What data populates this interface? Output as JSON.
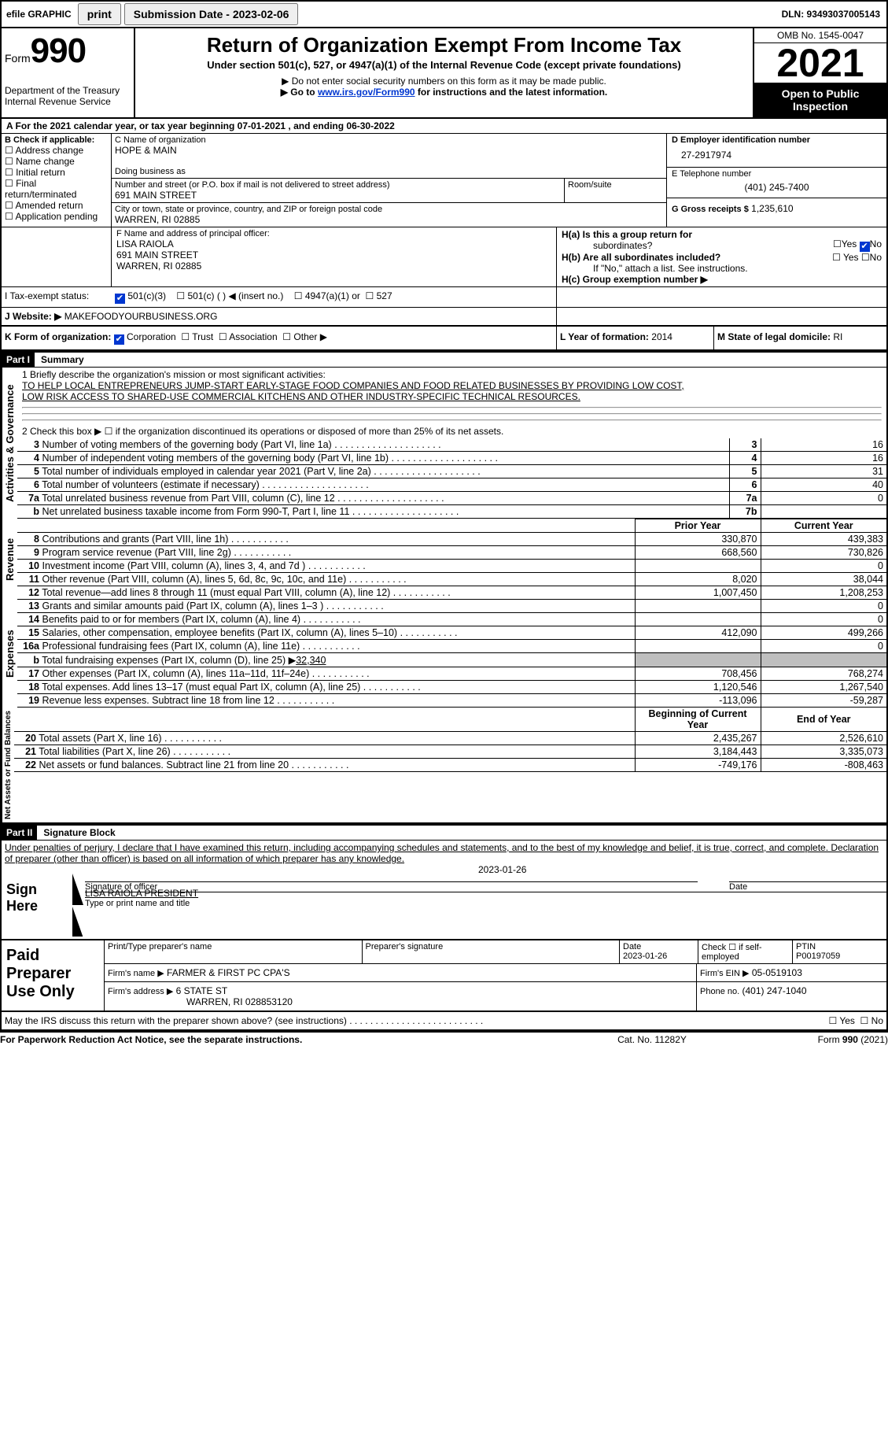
{
  "topbar": {
    "efile_label": "efile GRAPHIC",
    "print_label": "print",
    "sub_date_label": "Submission Date - 2023-02-06",
    "dln_label": "DLN: 93493037005143"
  },
  "header": {
    "form_word": "Form",
    "form_num": "990",
    "dept": "Department of the Treasury",
    "irs": "Internal Revenue Service",
    "title": "Return of Organization Exempt From Income Tax",
    "subtitle": "Under section 501(c), 527, or 4947(a)(1) of the Internal Revenue Code (except private foundations)",
    "note1": "▶ Do not enter social security numbers on this form as it may be made public.",
    "note2_pre": "▶ Go to ",
    "note2_link": "www.irs.gov/Form990",
    "note2_post": " for instructions and the latest information.",
    "omb": "OMB No. 1545-0047",
    "year": "2021",
    "public": "Open to Public Inspection"
  },
  "rowA": {
    "text_a": "A For the 2021 calendar year, or tax year beginning 07-01-2021",
    "text_b": ", and ending 06-30-2022"
  },
  "B": {
    "label": "B Check if applicable:",
    "c1": "Address change",
    "c2": "Name change",
    "c3": "Initial return",
    "c4": "Final return/terminated",
    "c5": "Amended return",
    "c6": "Application pending"
  },
  "C": {
    "name_label": "C Name of organization",
    "name": "HOPE & MAIN",
    "dba_label": "Doing business as",
    "street_label": "Number and street (or P.O. box if mail is not delivered to street address)",
    "room_label": "Room/suite",
    "street": "691 MAIN STREET",
    "city_label": "City or town, state or province, country, and ZIP or foreign postal code",
    "city": "WARREN, RI  02885"
  },
  "D": {
    "label": "D Employer identification number",
    "val": "27-2917974"
  },
  "E": {
    "label": "E Telephone number",
    "val": "(401) 245-7400"
  },
  "G": {
    "label": "G Gross receipts $",
    "val": "1,235,610"
  },
  "F": {
    "label": "F  Name and address of principal officer:",
    "l1": "LISA RAIOLA",
    "l2": "691 MAIN STREET",
    "l3": "WARREN, RI  02885"
  },
  "H": {
    "a_label": "H(a)  Is this a group return for",
    "a_label2": "subordinates?",
    "b_label": "H(b)  Are all subordinates included?",
    "b_note": "If \"No,\" attach a list. See instructions.",
    "c_label": "H(c)  Group exemption number ▶",
    "yes": "Yes",
    "no": "No"
  },
  "I": {
    "label": "I    Tax-exempt status:",
    "o1": "501(c)(3)",
    "o2": "501(c) (  ) ◀ (insert no.)",
    "o3": "4947(a)(1) or",
    "o4": "527"
  },
  "J": {
    "label": "J    Website: ▶",
    "val": " MAKEFOODYOURBUSINESS.ORG"
  },
  "K": {
    "label": "K Form of organization:",
    "o1": "Corporation",
    "o2": "Trust",
    "o3": "Association",
    "o4": "Other ▶"
  },
  "L": {
    "label": "L Year of formation:",
    "val": "2014"
  },
  "M": {
    "label": "M State of legal domicile:",
    "val": "RI"
  },
  "parts": {
    "p1": "Part I",
    "p1t": "Summary",
    "p2": "Part II",
    "p2t": "Signature Block"
  },
  "mission": {
    "l1_label": "1  Briefly describe the organization's mission or most significant activities:",
    "l1a": "TO HELP LOCAL ENTREPRENEURS JUMP-START EARLY-STAGE FOOD COMPANIES AND FOOD RELATED BUSINESSES BY PROVIDING LOW COST,",
    "l1b": "LOW RISK ACCESS TO SHARED-USE COMMERCIAL KITCHENS AND OTHER INDUSTRY-SPECIFIC TECHNICAL RESOURCES.",
    "l2": "2    Check this box ▶ ☐  if the organization discontinued its operations or disposed of more than 25% of its net assets."
  },
  "side": {
    "a": "Activities & Governance",
    "b": "Revenue",
    "c": "Expenses",
    "d": "Net Assets or Fund Balances"
  },
  "rows_gov": [
    {
      "n": "3",
      "t": "Number of voting members of the governing body (Part VI, line 1a)",
      "box": "3",
      "v": "16"
    },
    {
      "n": "4",
      "t": "Number of independent voting members of the governing body (Part VI, line 1b)",
      "box": "4",
      "v": "16"
    },
    {
      "n": "5",
      "t": "Total number of individuals employed in calendar year 2021 (Part V, line 2a)",
      "box": "5",
      "v": "31"
    },
    {
      "n": "6",
      "t": "Total number of volunteers (estimate if necessary)",
      "box": "6",
      "v": "40"
    },
    {
      "n": "7a",
      "t": "Total unrelated business revenue from Part VIII, column (C), line 12",
      "box": "7a",
      "v": "0"
    },
    {
      "n": "b",
      "t": "Net unrelated business taxable income from Form 990-T, Part I, line 11",
      "box": "7b",
      "v": ""
    }
  ],
  "col_head": {
    "py": "Prior Year",
    "cy": "Current Year",
    "boy": "Beginning of Current Year",
    "eoy": "End of Year"
  },
  "rows_rev": [
    {
      "n": "8",
      "t": "Contributions and grants (Part VIII, line 1h)",
      "py": "330,870",
      "cy": "439,383"
    },
    {
      "n": "9",
      "t": "Program service revenue (Part VIII, line 2g)",
      "py": "668,560",
      "cy": "730,826"
    },
    {
      "n": "10",
      "t": "Investment income (Part VIII, column (A), lines 3, 4, and 7d )",
      "py": "",
      "cy": "0"
    },
    {
      "n": "11",
      "t": "Other revenue (Part VIII, column (A), lines 5, 6d, 8c, 9c, 10c, and 11e)",
      "py": "8,020",
      "cy": "38,044"
    },
    {
      "n": "12",
      "t": "Total revenue—add lines 8 through 11 (must equal Part VIII, column (A), line 12)",
      "py": "1,007,450",
      "cy": "1,208,253"
    }
  ],
  "rows_exp": [
    {
      "n": "13",
      "t": "Grants and similar amounts paid (Part IX, column (A), lines 1–3 )",
      "py": "",
      "cy": "0"
    },
    {
      "n": "14",
      "t": "Benefits paid to or for members (Part IX, column (A), line 4)",
      "py": "",
      "cy": "0"
    },
    {
      "n": "15",
      "t": "Salaries, other compensation, employee benefits (Part IX, column (A), lines 5–10)",
      "py": "412,090",
      "cy": "499,266"
    },
    {
      "n": "16a",
      "t": "Professional fundraising fees (Part IX, column (A), line 11e)",
      "py": "",
      "cy": "0"
    }
  ],
  "row16b": {
    "n": "b",
    "t": "Total fundraising expenses (Part IX, column (D), line 25) ▶",
    "v": "32,340"
  },
  "rows_exp2": [
    {
      "n": "17",
      "t": "Other expenses (Part IX, column (A), lines 11a–11d, 11f–24e)",
      "py": "708,456",
      "cy": "768,274"
    },
    {
      "n": "18",
      "t": "Total expenses. Add lines 13–17 (must equal Part IX, column (A), line 25)",
      "py": "1,120,546",
      "cy": "1,267,540"
    },
    {
      "n": "19",
      "t": "Revenue less expenses. Subtract line 18 from line 12",
      "py": "-113,096",
      "cy": "-59,287"
    }
  ],
  "rows_net": [
    {
      "n": "20",
      "t": "Total assets (Part X, line 16)",
      "py": "2,435,267",
      "cy": "2,526,610"
    },
    {
      "n": "21",
      "t": "Total liabilities (Part X, line 26)",
      "py": "3,184,443",
      "cy": "3,335,073"
    },
    {
      "n": "22",
      "t": "Net assets or fund balances. Subtract line 21 from line 20",
      "py": "-749,176",
      "cy": "-808,463"
    }
  ],
  "sig": {
    "decl": "Under penalties of perjury, I declare that I have examined this return, including accompanying schedules and statements, and to the best of my knowledge and belief, it is true, correct, and complete. Declaration of preparer (other than officer) is based on all information of which preparer has any knowledge.",
    "sign_here": "Sign Here",
    "sig_officer": "Signature of officer",
    "date": "Date",
    "date_val": "2023-01-26",
    "name_title": "LISA RAIOLA  PRESIDENT",
    "name_title_label": "Type or print name and title"
  },
  "prep": {
    "label": "Paid Preparer Use Only",
    "pt_name": "Print/Type preparer's name",
    "psig": "Preparer's signature",
    "pdate_label": "Date",
    "pdate": "2023-01-26",
    "check_label": "Check ☐ if self-employed",
    "ptin_label": "PTIN",
    "ptin": "P00197059",
    "firm_name_label": "Firm's name    ▶",
    "firm_name": "FARMER & FIRST PC CPA'S",
    "firm_ein_label": "Firm's EIN ▶",
    "firm_ein": "05-0519103",
    "firm_addr_label": "Firm's address ▶",
    "firm_addr1": "6 STATE ST",
    "firm_addr2": "WARREN, RI  028853120",
    "phone_label": "Phone no.",
    "phone": "(401) 247-1040"
  },
  "discuss": {
    "q": "May the IRS discuss this return with the preparer shown above? (see instructions)",
    "yes": "Yes",
    "no": "No"
  },
  "footer": {
    "l": "For Paperwork Reduction Act Notice, see the separate instructions.",
    "m": "Cat. No. 11282Y",
    "r": "Form 990 (2021)"
  },
  "colors": {
    "link": "#0037d0",
    "grey": "#bfbfbf"
  }
}
